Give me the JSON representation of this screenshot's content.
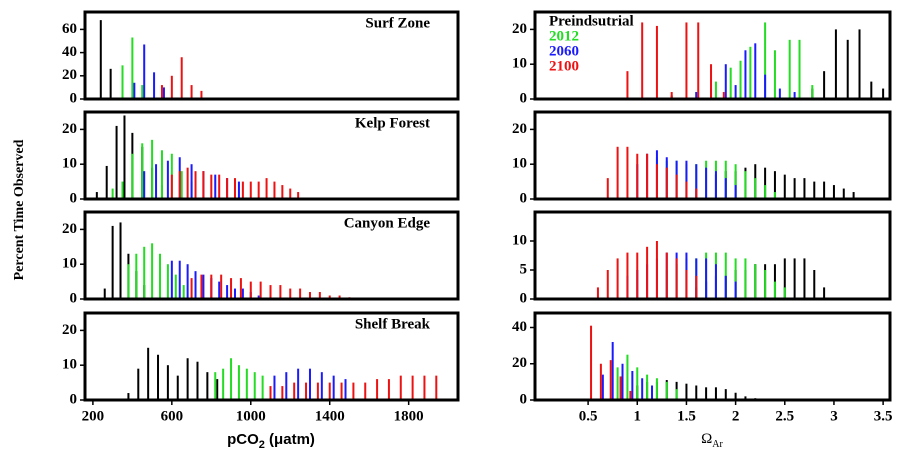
{
  "ylabel": "Percent Time Observed",
  "xlabel_left": [
    "pCO",
    "2",
    " (μatm)"
  ],
  "xlabel_right": [
    "Ω",
    "Ar"
  ],
  "chart_data": [
    {
      "type": "bar",
      "title": "Surf Zone",
      "xlim": [
        160,
        2050
      ],
      "ylim": [
        0,
        75
      ],
      "yticks": [
        0,
        20,
        40,
        60
      ],
      "series": [
        {
          "color": "#000000",
          "x": [
            240,
            290
          ],
          "values": [
            68,
            26
          ]
        },
        {
          "color": "#22dd22",
          "x": [
            350,
            400,
            450
          ],
          "values": [
            29,
            53,
            12
          ]
        },
        {
          "color": "#1a1aff",
          "x": [
            410,
            460,
            510,
            560
          ],
          "values": [
            14,
            47,
            23,
            10
          ]
        },
        {
          "color": "#ee1111",
          "x": [
            550,
            600,
            650,
            700,
            750
          ],
          "values": [
            12,
            20,
            36,
            12,
            7
          ]
        }
      ]
    },
    {
      "type": "bar",
      "title": "Kelp Forest",
      "xlim": [
        160,
        2050
      ],
      "ylim": [
        0,
        25
      ],
      "yticks": [
        0,
        10,
        20
      ],
      "series": [
        {
          "color": "#000000",
          "x": [
            220,
            270,
            320,
            360,
            400,
            450,
            500,
            550
          ],
          "values": [
            2,
            9.5,
            21,
            24,
            19,
            15,
            9,
            4
          ]
        },
        {
          "color": "#22dd22",
          "x": [
            300,
            350,
            400,
            450,
            500,
            550,
            600,
            650,
            700
          ],
          "values": [
            3,
            5,
            13,
            16,
            17,
            14,
            13,
            8,
            5
          ]
        },
        {
          "color": "#1a1aff",
          "x": [
            460,
            520,
            580,
            640,
            700,
            760,
            820,
            880,
            940
          ],
          "values": [
            8,
            10,
            11,
            12,
            10,
            8,
            7,
            6,
            5
          ]
        },
        {
          "color": "#ee1111",
          "x": [
            600,
            640,
            680,
            720,
            760,
            800,
            840,
            880,
            920,
            960,
            1000,
            1040,
            1080,
            1120,
            1160,
            1200,
            1240
          ],
          "values": [
            7,
            8,
            9,
            8,
            8,
            7,
            7,
            6,
            6,
            5,
            5,
            5,
            6,
            5,
            4,
            3,
            2
          ]
        }
      ]
    },
    {
      "type": "bar",
      "title": "Canyon Edge",
      "xlim": [
        160,
        2050
      ],
      "ylim": [
        0,
        25
      ],
      "yticks": [
        0,
        10,
        20
      ],
      "series": [
        {
          "color": "#000000",
          "x": [
            260,
            300,
            340,
            380,
            420,
            460
          ],
          "values": [
            3,
            21,
            22,
            13,
            8,
            4
          ]
        },
        {
          "color": "#22dd22",
          "x": [
            380,
            420,
            460,
            500,
            540,
            580,
            620,
            660
          ],
          "values": [
            10,
            13,
            15,
            16,
            13,
            10,
            7,
            4
          ]
        },
        {
          "color": "#1a1aff",
          "x": [
            600,
            640,
            680,
            720,
            760,
            800,
            840,
            880,
            920,
            960,
            1000,
            1040
          ],
          "values": [
            11,
            11,
            10,
            8,
            7,
            6,
            5,
            4,
            3,
            3,
            2,
            1
          ]
        },
        {
          "color": "#ee1111",
          "x": [
            700,
            750,
            800,
            850,
            900,
            950,
            1000,
            1050,
            1100,
            1150,
            1200,
            1250,
            1300,
            1350,
            1400,
            1450,
            1500
          ],
          "values": [
            6,
            7,
            7,
            7,
            6,
            6,
            5,
            5,
            4,
            4,
            3,
            3,
            2,
            2,
            1,
            1,
            0.5
          ]
        }
      ]
    },
    {
      "type": "bar",
      "title": "Shelf Break",
      "xlim": [
        160,
        2050
      ],
      "ylim": [
        0,
        25
      ],
      "yticks": [
        0,
        10,
        20
      ],
      "xticks": [
        200,
        600,
        1000,
        1400,
        1800
      ],
      "series": [
        {
          "color": "#000000",
          "x": [
            380,
            430,
            480,
            530,
            580,
            630,
            680,
            730,
            780,
            830
          ],
          "values": [
            2,
            9,
            15,
            13,
            10,
            7,
            12,
            11,
            8,
            6
          ]
        },
        {
          "color": "#22dd22",
          "x": [
            820,
            860,
            900,
            940,
            980,
            1020,
            1060
          ],
          "values": [
            8,
            9,
            12,
            10,
            9,
            8,
            7
          ]
        },
        {
          "color": "#1a1aff",
          "x": [
            1120,
            1180,
            1240,
            1300,
            1360,
            1420,
            1480
          ],
          "values": [
            7,
            8,
            9,
            9,
            8,
            7,
            6
          ]
        },
        {
          "color": "#ee1111",
          "x": [
            1100,
            1160,
            1220,
            1280,
            1340,
            1400,
            1460,
            1520,
            1580,
            1640,
            1700,
            1760,
            1820,
            1880,
            1940
          ],
          "values": [
            4,
            4,
            5,
            5,
            5,
            5,
            5,
            5,
            5,
            6,
            6,
            7,
            7,
            7,
            7
          ]
        }
      ]
    },
    {
      "type": "bar",
      "xlim": [
        -0.04,
        3.57
      ],
      "ylim": [
        0,
        25
      ],
      "yticks": [
        0,
        10,
        20
      ],
      "legend": "top-left",
      "series": [
        {
          "name": "Preindsutrial",
          "color": "#000000",
          "x": [
            1.35,
            2.78,
            2.9,
            3.02,
            3.14,
            3.26,
            3.38,
            3.5
          ],
          "values": [
            1,
            3,
            8,
            20,
            17,
            20,
            5,
            3
          ]
        },
        {
          "name": "2012",
          "color": "#22dd22",
          "x": [
            1.6,
            1.8,
            1.95,
            2.05,
            2.15,
            2.3,
            2.4,
            2.55,
            2.65,
            2.78
          ],
          "values": [
            2,
            5,
            9,
            11,
            15,
            22,
            14,
            17,
            17,
            4
          ]
        },
        {
          "name": "2060",
          "color": "#1a1aff",
          "x": [
            1.6,
            1.75,
            1.9,
            2.0,
            2.1,
            2.2,
            2.3,
            2.45,
            2.6
          ],
          "values": [
            2,
            3,
            10,
            4,
            14,
            16,
            7,
            3,
            2
          ]
        },
        {
          "name": "2100",
          "color": "#ee1111",
          "x": [
            0.9,
            1.05,
            1.2,
            1.35,
            1.5,
            1.62,
            1.75,
            1.88
          ],
          "values": [
            8,
            22,
            21,
            2,
            22,
            22,
            10,
            2
          ]
        }
      ]
    },
    {
      "type": "bar",
      "xlim": [
        -0.04,
        3.57
      ],
      "ylim": [
        0,
        25
      ],
      "yticks": [
        0,
        10,
        20
      ],
      "series": [
        {
          "color": "#000000",
          "x": [
            1.8,
            1.9,
            2.0,
            2.1,
            2.2,
            2.3,
            2.4,
            2.5,
            2.6,
            2.7,
            2.8,
            2.9,
            3.0,
            3.1,
            3.2
          ],
          "values": [
            7,
            8,
            8,
            9,
            10,
            9,
            8,
            7,
            6,
            6,
            5,
            5,
            4,
            3,
            2
          ]
        },
        {
          "color": "#22dd22",
          "x": [
            1.2,
            1.3,
            1.4,
            1.5,
            1.6,
            1.7,
            1.8,
            1.9,
            2.0,
            2.1,
            2.2,
            2.3,
            2.4
          ],
          "values": [
            12,
            11,
            11,
            10,
            10,
            11,
            11,
            11,
            10,
            8,
            6,
            4,
            2
          ]
        },
        {
          "color": "#1a1aff",
          "x": [
            1.0,
            1.1,
            1.2,
            1.3,
            1.4,
            1.5,
            1.6,
            1.7,
            1.8,
            1.9,
            2.0
          ],
          "values": [
            10,
            13,
            14,
            12,
            11,
            11,
            10,
            9,
            8,
            6,
            4
          ]
        },
        {
          "color": "#ee1111",
          "x": [
            0.7,
            0.8,
            0.9,
            1.0,
            1.1,
            1.2,
            1.3,
            1.4,
            1.5,
            1.6
          ],
          "values": [
            6,
            15,
            15,
            13,
            13,
            10,
            9,
            7,
            5,
            3
          ]
        }
      ]
    },
    {
      "type": "bar",
      "xlim": [
        -0.04,
        3.57
      ],
      "ylim": [
        0,
        15
      ],
      "yticks": [
        0,
        5,
        10
      ],
      "series": [
        {
          "color": "#000000",
          "x": [
            1.6,
            1.7,
            1.8,
            1.9,
            2.0,
            2.1,
            2.2,
            2.3,
            2.4,
            2.5,
            2.6,
            2.7,
            2.8,
            2.9
          ],
          "values": [
            2,
            3,
            4,
            4,
            5,
            5,
            6,
            6,
            6,
            7,
            7,
            7,
            5,
            2
          ]
        },
        {
          "color": "#22dd22",
          "x": [
            1.3,
            1.4,
            1.5,
            1.6,
            1.7,
            1.8,
            1.9,
            2.0,
            2.1,
            2.2,
            2.3,
            2.4,
            2.5
          ],
          "values": [
            5,
            6,
            7,
            7,
            8,
            8,
            8,
            7,
            7,
            6,
            5,
            3,
            2
          ]
        },
        {
          "color": "#1a1aff",
          "x": [
            0.9,
            1.0,
            1.1,
            1.2,
            1.3,
            1.4,
            1.5,
            1.6,
            1.7,
            1.8,
            1.9,
            2.0
          ],
          "values": [
            4,
            5,
            6,
            7,
            8,
            8,
            8,
            7,
            7,
            6,
            4,
            3
          ]
        },
        {
          "color": "#ee1111",
          "x": [
            0.6,
            0.7,
            0.8,
            0.9,
            1.0,
            1.1,
            1.2,
            1.3,
            1.4,
            1.5,
            1.6
          ],
          "values": [
            2,
            5,
            7,
            8,
            8,
            9,
            10,
            8,
            7,
            5,
            4
          ]
        }
      ]
    },
    {
      "type": "bar",
      "xlim": [
        -0.04,
        3.57
      ],
      "ylim": [
        0,
        48
      ],
      "yticks": [
        0,
        20,
        40
      ],
      "xticks": [
        0.5,
        1,
        1.5,
        2,
        2.5,
        3,
        3.5
      ],
      "series": [
        {
          "color": "#000000",
          "x": [
            1.0,
            1.1,
            1.2,
            1.3,
            1.4,
            1.5,
            1.6,
            1.7,
            1.8,
            1.9,
            2.0,
            2.1,
            2.2
          ],
          "values": [
            8,
            10,
            10,
            11,
            10,
            9,
            8,
            7,
            7,
            6,
            4,
            2,
            1
          ]
        },
        {
          "color": "#22dd22",
          "x": [
            0.8,
            0.9,
            1.0,
            1.1,
            1.2,
            1.3,
            1.4
          ],
          "values": [
            18,
            25,
            18,
            14,
            12,
            10,
            6
          ]
        },
        {
          "color": "#1a1aff",
          "x": [
            0.65,
            0.75,
            0.85,
            0.95,
            1.05,
            1.15
          ],
          "values": [
            14,
            32,
            20,
            16,
            12,
            8
          ]
        },
        {
          "color": "#ee1111",
          "x": [
            0.53,
            0.63,
            0.73,
            0.83,
            0.93
          ],
          "values": [
            41,
            20,
            22,
            13,
            5
          ]
        }
      ]
    }
  ]
}
